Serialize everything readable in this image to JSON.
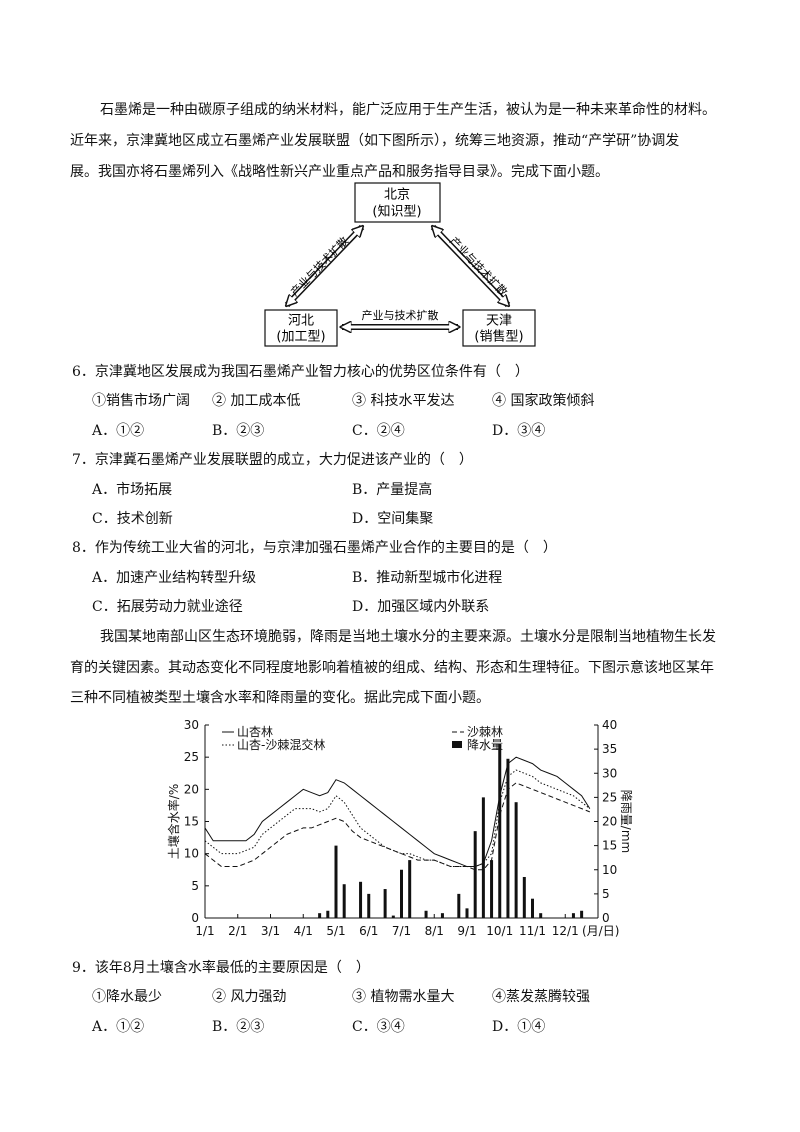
{
  "passage1": {
    "lines": [
      "石墨烯是一种由碳原子组成的纳米材料，能广泛应用于生产生活，被认为是一种未来革命性的材料。",
      "近年来，京津冀地区成立石墨烯产业发展联盟（如下图所示），统筹三地资源，推动“产学研”协调发",
      "展。我国亦将石墨烯列入《战略性新兴产业重点产品和服务指导目录》。完成下面小题。"
    ]
  },
  "diagram": {
    "nodes": [
      {
        "name": "北京",
        "type": "(知识型)"
      },
      {
        "name": "河北",
        "type": "(加工型)"
      },
      {
        "name": "天津",
        "type": "(销售型)"
      }
    ],
    "edges": [
      {
        "label": "产业与技术扩散"
      },
      {
        "label": "产业与技术扩散"
      },
      {
        "label": "产业与技术扩散"
      }
    ]
  },
  "questions": [
    {
      "stem": "6．京津冀地区发展成为我国石墨烯产业智力核心的优势区位条件有（　）",
      "items": [
        "①销售市场广阔",
        "② 加工成本低",
        "③ 科技水平发达",
        "④ 国家政策倾斜"
      ],
      "options": [
        "A．①②",
        "B．②③",
        "C．②④",
        "D．③④"
      ]
    },
    {
      "stem": "7．京津冀石墨烯产业发展联盟的成立，大力促进该产业的（　）",
      "options": [
        "A．市场拓展",
        "B．产量提高",
        "C．技术创新",
        "D．空间集聚"
      ]
    },
    {
      "stem": "8．作为传统工业大省的河北，与京津加强石墨烯产业合作的主要目的是（　）",
      "options": [
        "A．加速产业结构转型升级",
        "B．推动新型城市化进程",
        "C．拓展劳动力就业途径",
        "D．加强区域内外联系"
      ]
    }
  ],
  "passage2": {
    "lines": [
      "我国某地南部山区生态环境脆弱，降雨是当地土壤水分的主要来源。土壤水分是限制当地植物生长发",
      "育的关键因素。其动态变化不同程度地影响着植被的组成、结构、形态和生理特征。下图示意该地区某年",
      "三种不同植被类型土壤含水率和降雨量的变化。据此完成下面小题。"
    ]
  },
  "chart_data": {
    "type": "line",
    "y_label": "土壤含水率/%",
    "y2_label": "降雨量/mm",
    "x_label": "(月/日)",
    "categories": [
      "1/1",
      null,
      null,
      null,
      "2/1",
      null,
      null,
      null,
      "3/1",
      null,
      null,
      null,
      "4/1",
      null,
      null,
      null,
      "5/1",
      null,
      null,
      null,
      "6/1",
      null,
      null,
      null,
      "7/1",
      null,
      null,
      null,
      "8/1",
      null,
      null,
      null,
      "9/1",
      null,
      null,
      null,
      "10/1",
      null,
      null,
      null,
      "11/1",
      null,
      null,
      null,
      "12/1",
      null,
      null,
      null
    ],
    "ylim": [
      0,
      30
    ],
    "yticks": [
      0,
      5,
      10,
      15,
      20,
      25,
      30
    ],
    "y2lim": [
      0,
      40
    ],
    "y2ticks": [
      0,
      5,
      10,
      15,
      20,
      25,
      30,
      35,
      40
    ],
    "series": [
      {
        "name": "山杏林",
        "type": "line",
        "line_style": "solid",
        "color": "#111111",
        "values": [
          14,
          12,
          12,
          12,
          12,
          12,
          13,
          15,
          16,
          17,
          18,
          19,
          20,
          19.5,
          19,
          19.5,
          21.5,
          21,
          20,
          19,
          18,
          17,
          16,
          15,
          14,
          13,
          12,
          11,
          10,
          9.5,
          9,
          8.5,
          8,
          8,
          8.5,
          12,
          19,
          24,
          25,
          24.5,
          24,
          23,
          22.5,
          22,
          21,
          20,
          19,
          17
        ]
      },
      {
        "name": "沙棘林",
        "type": "line",
        "line_style": "dashed",
        "color": "#111111",
        "values": [
          10,
          9,
          8,
          8,
          8,
          8.5,
          9,
          10,
          11,
          12,
          13,
          13.5,
          14,
          14,
          14.5,
          15,
          15.5,
          15,
          13.5,
          12.5,
          12,
          11.5,
          11,
          10.5,
          10,
          9.5,
          9,
          9,
          9,
          8.5,
          8,
          8,
          8,
          7.5,
          7.5,
          9,
          16,
          20,
          21,
          20.5,
          20,
          19.5,
          19,
          18.5,
          18,
          17.5,
          17,
          16.5
        ]
      },
      {
        "name": "山杏-沙棘混交林",
        "type": "line",
        "line_style": "dotted",
        "color": "#111111",
        "values": [
          12,
          11,
          10,
          10,
          10,
          10.5,
          11,
          13,
          14,
          15,
          16,
          17,
          17,
          17,
          16.5,
          17,
          19,
          18,
          16,
          14,
          13,
          12,
          11,
          10.5,
          10,
          10,
          9.5,
          9,
          9,
          8.5,
          8,
          8,
          8,
          8,
          8.5,
          10,
          18,
          22,
          23,
          22.5,
          22,
          21,
          20.5,
          20,
          19.5,
          19,
          18,
          17
        ]
      },
      {
        "name": "降水量",
        "type": "bar",
        "axis": "y2",
        "color": "#111111",
        "values": [
          0,
          0,
          0,
          0,
          0,
          0,
          0,
          0,
          0,
          0,
          0,
          0,
          0,
          0,
          1,
          1.5,
          15,
          7,
          0,
          7.5,
          5,
          0,
          6,
          0.5,
          10,
          12,
          0,
          1.5,
          0,
          1,
          0,
          5,
          2,
          18,
          25,
          12,
          36,
          33,
          24,
          8.5,
          4,
          1,
          0,
          0,
          0,
          1,
          1.5,
          0
        ]
      }
    ]
  },
  "question9": {
    "stem": "9．该年8月土壤含水率最低的主要原因是（　）",
    "items": [
      "①降水最少",
      "② 风力强劲",
      "③ 植物需水量大",
      "④蒸发蒸腾较强"
    ],
    "options": [
      "A．①②",
      "B．②③",
      "C．③④",
      "D．①④"
    ]
  }
}
